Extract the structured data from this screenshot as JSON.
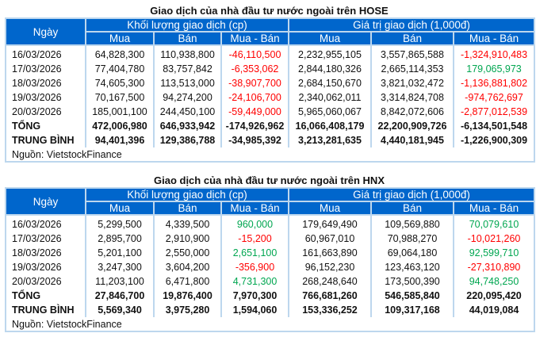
{
  "headers": {
    "date": "Ngày",
    "volume": "Khối lượng giao dịch (cp)",
    "value": "Giá trị giao dịch (1,000đ)",
    "buy": "Mua",
    "sell": "Bán",
    "net": "Mua - Bán"
  },
  "colors": {
    "header": "#0066cc",
    "negative": "#ff0000",
    "positive": "#00a650"
  },
  "tables": [
    {
      "title": "Giao dịch của nhà đầu tư nước ngoài trên HOSE",
      "source": "Nguồn: VietstockFinance",
      "rows": [
        [
          "16/03/2026",
          "64,828,300",
          "110,938,800",
          "-46,110,500",
          "2,232,955,105",
          "3,557,865,588",
          "-1,324,910,483"
        ],
        [
          "17/03/2026",
          "77,404,780",
          "83,757,842",
          "-6,353,062",
          "2,844,180,326",
          "2,665,114,353",
          "179,065,973"
        ],
        [
          "18/03/2026",
          "74,605,300",
          "113,513,000",
          "-38,907,700",
          "2,684,150,670",
          "3,821,032,472",
          "-1,136,881,802"
        ],
        [
          "19/03/2026",
          "70,167,500",
          "94,274,200",
          "-24,106,700",
          "2,340,062,011",
          "3,314,824,708",
          "-974,762,697"
        ],
        [
          "20/03/2026",
          "185,001,100",
          "244,450,100",
          "-59,449,000",
          "5,965,060,067",
          "8,842,072,606",
          "-2,877,012,539"
        ]
      ],
      "totals": [
        [
          "TỔNG",
          "472,006,980",
          "646,933,942",
          "-174,926,962",
          "16,066,408,179",
          "22,200,909,726",
          "-6,134,501,548"
        ],
        [
          "TRUNG BÌNH",
          "94,401,396",
          "129,386,788",
          "-34,985,392",
          "3,213,281,635",
          "4,440,181,945",
          "-1,226,900,309"
        ]
      ]
    },
    {
      "title": "Giao dịch của nhà đầu tư nước ngoài trên HNX",
      "source": "Nguồn: VietstockFinance",
      "rows": [
        [
          "16/03/2026",
          "5,299,500",
          "4,339,500",
          "960,000",
          "179,649,490",
          "109,569,880",
          "70,079,610"
        ],
        [
          "17/03/2026",
          "2,895,700",
          "2,910,900",
          "-15,200",
          "60,967,010",
          "70,988,270",
          "-10,021,260"
        ],
        [
          "18/03/2026",
          "5,201,100",
          "2,550,000",
          "2,651,100",
          "161,663,890",
          "69,064,180",
          "92,599,710"
        ],
        [
          "19/03/2026",
          "3,247,300",
          "3,604,200",
          "-356,900",
          "96,152,230",
          "123,463,120",
          "-27,310,890"
        ],
        [
          "20/03/2026",
          "11,203,100",
          "6,471,800",
          "4,731,300",
          "268,248,640",
          "173,500,390",
          "94,748,250"
        ]
      ],
      "totals": [
        [
          "TỔNG",
          "27,846,700",
          "19,876,400",
          "7,970,300",
          "766,681,260",
          "546,585,840",
          "220,095,420"
        ],
        [
          "TRUNG BÌNH",
          "5,569,340",
          "3,975,280",
          "1,594,060",
          "153,336,252",
          "109,317,168",
          "44,019,084"
        ]
      ]
    }
  ]
}
